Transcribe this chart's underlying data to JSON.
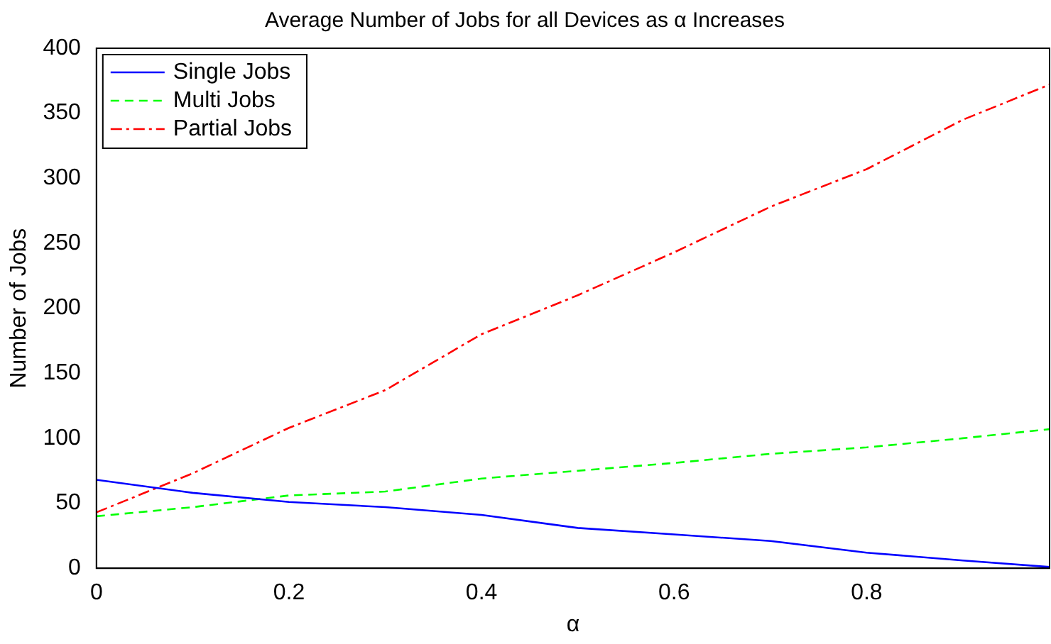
{
  "chart_data": {
    "type": "line",
    "title": "Average Number of Jobs for all Devices as α Increases",
    "xlabel": "α",
    "ylabel": "Number of Jobs",
    "x": [
      0,
      0.1,
      0.2,
      0.3,
      0.4,
      0.5,
      0.6,
      0.7,
      0.8,
      0.9,
      0.99
    ],
    "series": [
      {
        "name": "Single Jobs",
        "color": "#0000ff",
        "line_style": "solid",
        "values": [
          68,
          58,
          51,
          47,
          41,
          31,
          26,
          21,
          12,
          6,
          1
        ]
      },
      {
        "name": "Multi Jobs",
        "color": "#00ff00",
        "line_style": "dashed",
        "values": [
          40,
          47,
          56,
          59,
          69,
          75,
          81,
          88,
          93,
          100,
          107
        ]
      },
      {
        "name": "Partial Jobs",
        "color": "#ff0000",
        "line_style": "dashdot",
        "values": [
          43,
          73,
          108,
          137,
          180,
          210,
          243,
          278,
          307,
          345,
          372
        ]
      }
    ],
    "xlim": [
      0,
      0.99
    ],
    "xticks": [
      0,
      0.2,
      0.4,
      0.6,
      0.8
    ],
    "ylim": [
      0,
      400
    ],
    "yticks": [
      0,
      50,
      100,
      150,
      200,
      250,
      300,
      350,
      400
    ],
    "grid": false,
    "legend": "top left",
    "marker": "none"
  }
}
